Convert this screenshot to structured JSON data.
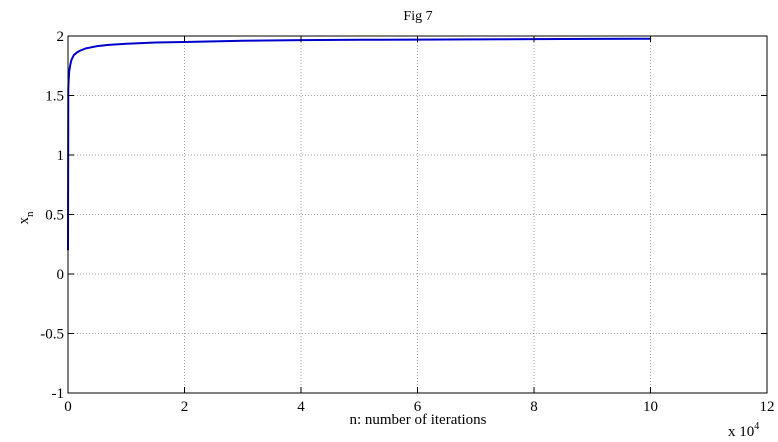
{
  "chart_data": {
    "type": "line",
    "title": "Fig 7",
    "xlabel": "n: number of iterations",
    "ylabel": "x",
    "ylabel_subscript": "n",
    "x_multiplier_label": "x 10",
    "x_multiplier_exponent": "4",
    "xlim": [
      0,
      120000
    ],
    "ylim": [
      -1,
      2
    ],
    "xticks": [
      0,
      20000,
      40000,
      60000,
      80000,
      100000,
      120000
    ],
    "xtick_labels": [
      "0",
      "2",
      "4",
      "6",
      "8",
      "10",
      "12"
    ],
    "yticks": [
      -1,
      -0.5,
      0,
      0.5,
      1,
      1.5,
      2
    ],
    "ytick_labels": [
      "-1",
      "-0.5",
      "0",
      "0.5",
      "1",
      "1.5",
      "2"
    ],
    "grid": true,
    "line_color": "#0000cc",
    "series": [
      {
        "x": [
          1,
          50,
          100,
          200,
          400,
          600,
          800,
          1000,
          1500,
          2000,
          3000,
          4000,
          5000,
          7000,
          10000,
          15000,
          20000,
          30000,
          40000,
          50000,
          60000,
          70000,
          80000,
          90000,
          100000
        ],
        "y": [
          0.2,
          1.55,
          1.62,
          1.7,
          1.76,
          1.8,
          1.82,
          1.84,
          1.86,
          1.875,
          1.895,
          1.905,
          1.915,
          1.925,
          1.935,
          1.945,
          1.95,
          1.96,
          1.965,
          1.968,
          1.97,
          1.972,
          1.974,
          1.976,
          1.977
        ]
      }
    ]
  }
}
